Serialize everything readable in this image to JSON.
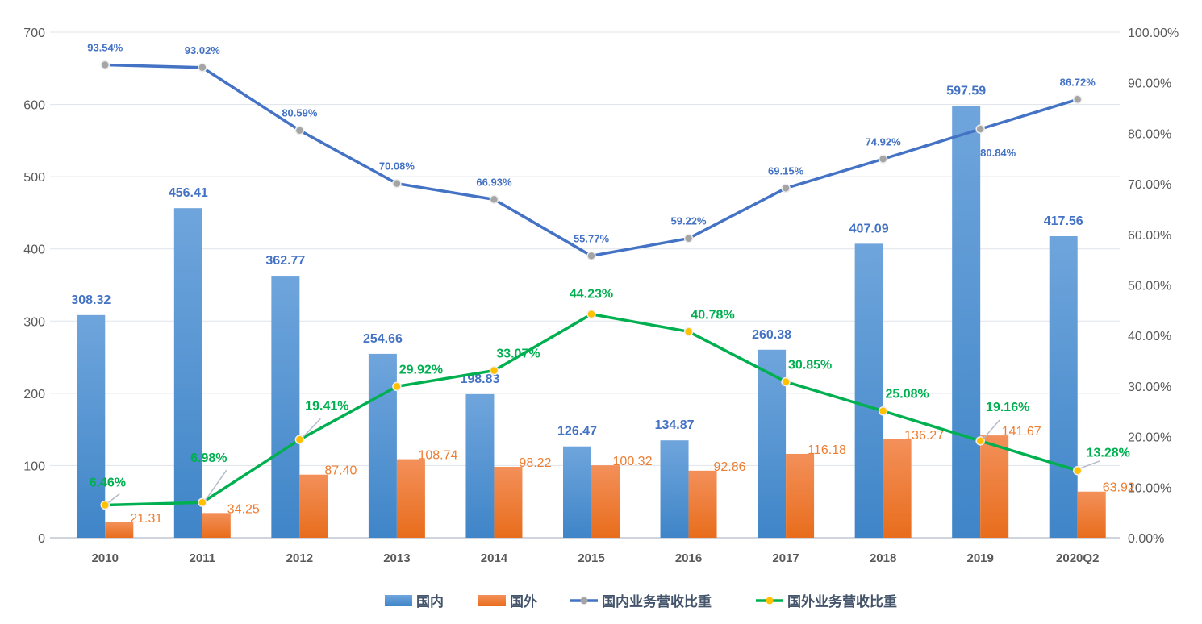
{
  "chart_data": {
    "type": "bar+line",
    "categories": [
      "2010",
      "2011",
      "2012",
      "2013",
      "2014",
      "2015",
      "2016",
      "2017",
      "2018",
      "2019",
      "2020Q2"
    ],
    "series": [
      {
        "name": "国内",
        "type": "bar",
        "axis": "left",
        "color": "#5b9bd5",
        "values": [
          308.32,
          456.41,
          362.77,
          254.66,
          198.83,
          126.47,
          134.87,
          260.38,
          407.09,
          597.59,
          417.56
        ]
      },
      {
        "name": "国外",
        "type": "bar",
        "axis": "left",
        "color": "#ed7d31",
        "values": [
          21.31,
          34.25,
          87.4,
          108.74,
          98.22,
          100.32,
          92.86,
          116.18,
          136.27,
          141.67,
          63.92
        ]
      },
      {
        "name": "国内业务营收比重",
        "type": "line",
        "axis": "right",
        "color": "#4472c4",
        "marker_color": "#a5a5a5",
        "values": [
          93.54,
          93.02,
          80.59,
          70.08,
          66.93,
          55.77,
          59.22,
          69.15,
          74.92,
          80.84,
          86.72
        ]
      },
      {
        "name": "国外业务营收比重",
        "type": "line",
        "axis": "right",
        "color": "#00b050",
        "marker_color": "#ffc000",
        "values": [
          6.46,
          6.98,
          19.41,
          29.92,
          33.07,
          44.23,
          40.78,
          30.85,
          25.08,
          19.16,
          13.28
        ]
      }
    ],
    "bar_labels": {
      "domestic": [
        "308.32",
        "456.41",
        "362.77",
        "254.66",
        "198.83",
        "126.47",
        "134.87",
        "260.38",
        "407.09",
        "597.59",
        "417.56"
      ],
      "foreign": [
        "21.31",
        "34.25",
        "87.40",
        "108.74",
        "98.22",
        "100.32",
        "92.86",
        "116.18",
        "136.27",
        "141.67",
        "63.92"
      ]
    },
    "line_labels": {
      "domestic": [
        "93.54%",
        "93.02%",
        "80.59%",
        "70.08%",
        "66.93%",
        "55.77%",
        "59.22%",
        "69.15%",
        "74.92%",
        "80.84%",
        "86.72%"
      ],
      "foreign": [
        "6.46%",
        "6.98%",
        "19.41%",
        "29.92%",
        "33.07%",
        "44.23%",
        "40.78%",
        "30.85%",
        "25.08%",
        "19.16%",
        "13.28%"
      ]
    },
    "y_left": {
      "ylim": [
        0,
        700
      ],
      "ticks": [
        "0",
        "100",
        "200",
        "300",
        "400",
        "500",
        "600",
        "700"
      ]
    },
    "y_right": {
      "ylim": [
        0,
        100
      ],
      "ticks": [
        "0.00%",
        "10.00%",
        "20.00%",
        "30.00%",
        "40.00%",
        "50.00%",
        "60.00%",
        "70.00%",
        "80.00%",
        "90.00%",
        "100.00%"
      ]
    },
    "grid": true,
    "legend": "bottom"
  }
}
